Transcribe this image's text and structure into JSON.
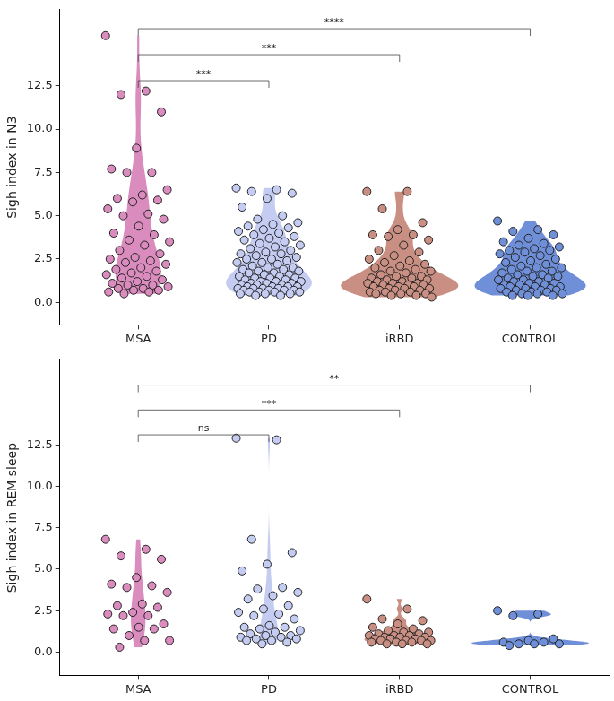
{
  "chart_data": [
    {
      "type": "violin",
      "y_label": "Sigh index in N3",
      "categories": [
        "MSA",
        "PD",
        "iRBD",
        "CONTROL"
      ],
      "colors": [
        "#d98cbd",
        "#c4ccf2",
        "#c98f82",
        "#6f8fd8"
      ],
      "values": [
        [
          15.4,
          12.2,
          12.0,
          11.0,
          8.9,
          7.7,
          7.5,
          7.5,
          6.5,
          6.2,
          6.0,
          5.9,
          5.8,
          5.4,
          5.1,
          5.0,
          4.8,
          4.4,
          4.0,
          3.9,
          3.6,
          3.5,
          3.3,
          3.0,
          2.8,
          2.6,
          2.5,
          2.4,
          2.3,
          2.2,
          2.0,
          1.9,
          1.8,
          1.7,
          1.6,
          1.5,
          1.4,
          1.3,
          1.2,
          1.1,
          1.0,
          1.0,
          0.9,
          0.8,
          0.8,
          0.7,
          0.7,
          0.6,
          0.6,
          0.5
        ],
        [
          6.6,
          6.5,
          6.4,
          6.3,
          6.0,
          5.5,
          5.0,
          4.8,
          4.6,
          4.5,
          4.4,
          4.3,
          4.2,
          4.1,
          4.0,
          3.9,
          3.8,
          3.7,
          3.6,
          3.5,
          3.4,
          3.3,
          3.2,
          3.1,
          3.0,
          2.9,
          2.8,
          2.8,
          2.7,
          2.6,
          2.5,
          2.5,
          2.4,
          2.3,
          2.3,
          2.2,
          2.1,
          2.0,
          2.0,
          1.9,
          1.9,
          1.8,
          1.8,
          1.7,
          1.7,
          1.6,
          1.6,
          1.5,
          1.5,
          1.4,
          1.4,
          1.4,
          1.3,
          1.3,
          1.2,
          1.2,
          1.2,
          1.1,
          1.1,
          1.1,
          1.0,
          1.0,
          1.0,
          0.9,
          0.9,
          0.9,
          0.9,
          0.8,
          0.8,
          0.8,
          0.8,
          0.7,
          0.7,
          0.7,
          0.7,
          0.6,
          0.6,
          0.6,
          0.6,
          0.5,
          0.5,
          0.5,
          0.4,
          0.4
        ],
        [
          6.4,
          6.4,
          5.4,
          4.6,
          4.2,
          3.9,
          3.9,
          3.8,
          3.6,
          3.3,
          3.0,
          2.9,
          2.7,
          2.5,
          2.4,
          2.3,
          2.2,
          2.1,
          2.0,
          1.9,
          1.8,
          1.8,
          1.7,
          1.6,
          1.5,
          1.5,
          1.4,
          1.4,
          1.3,
          1.3,
          1.2,
          1.2,
          1.1,
          1.1,
          1.1,
          1.0,
          1.0,
          1.0,
          0.9,
          0.9,
          0.9,
          0.8,
          0.8,
          0.8,
          0.7,
          0.7,
          0.7,
          0.6,
          0.6,
          0.6,
          0.5,
          0.5,
          0.5,
          0.4,
          0.4,
          0.3
        ],
        [
          4.7,
          4.2,
          4.1,
          3.9,
          3.7,
          3.5,
          3.4,
          3.3,
          3.2,
          3.1,
          3.0,
          3.0,
          2.9,
          2.8,
          2.7,
          2.6,
          2.5,
          2.4,
          2.3,
          2.2,
          2.1,
          2.0,
          2.0,
          1.9,
          1.8,
          1.8,
          1.7,
          1.6,
          1.6,
          1.5,
          1.5,
          1.4,
          1.4,
          1.3,
          1.3,
          1.2,
          1.2,
          1.1,
          1.1,
          1.0,
          1.0,
          1.0,
          0.9,
          0.9,
          0.9,
          0.8,
          0.8,
          0.8,
          0.7,
          0.7,
          0.7,
          0.6,
          0.6,
          0.6,
          0.5,
          0.5,
          0.5,
          0.4,
          0.4,
          0.4
        ]
      ],
      "annotations": [
        {
          "from": "MSA",
          "to": "CONTROL",
          "y": 15.8,
          "label": "****"
        },
        {
          "from": "MSA",
          "to": "iRBD",
          "y": 14.3,
          "label": "***"
        },
        {
          "from": "MSA",
          "to": "PD",
          "y": 12.8,
          "label": "***"
        }
      ],
      "ylim": [
        -1.3,
        16.9
      ],
      "yticks": [
        {
          "value": 0,
          "label": "0.0"
        },
        2.5,
        {
          "value": 5,
          "label": "5.0"
        },
        7.5,
        {
          "value": 10,
          "label": "10.0"
        },
        12.5
      ],
      "grid": false
    },
    {
      "type": "violin",
      "y_label": "Sigh index in REM sleep",
      "categories": [
        "MSA",
        "PD",
        "iRBD",
        "CONTROL"
      ],
      "colors": [
        "#d98cbd",
        "#c4ccf2",
        "#c98f82",
        "#6f8fd8"
      ],
      "values": [
        [
          6.8,
          6.2,
          5.8,
          5.6,
          4.5,
          4.1,
          4.0,
          3.9,
          3.6,
          2.9,
          2.8,
          2.7,
          2.4,
          2.3,
          2.2,
          2.2,
          1.7,
          1.5,
          1.4,
          1.4,
          1.0,
          0.7,
          0.7,
          0.3
        ],
        [
          12.9,
          12.8,
          6.8,
          6.0,
          5.3,
          4.9,
          3.9,
          3.8,
          3.6,
          3.4,
          3.2,
          2.8,
          2.6,
          2.4,
          2.3,
          2.2,
          2.0,
          1.6,
          1.5,
          1.5,
          1.4,
          1.3,
          1.2,
          1.1,
          1.0,
          1.0,
          0.9,
          0.9,
          0.8,
          0.8,
          0.7,
          0.7,
          0.6,
          0.5
        ],
        [
          3.2,
          2.6,
          2.0,
          1.9,
          1.7,
          1.5,
          1.4,
          1.3,
          1.2,
          1.2,
          1.1,
          1.1,
          1.0,
          1.0,
          1.0,
          0.9,
          0.9,
          0.9,
          0.8,
          0.8,
          0.8,
          0.7,
          0.7,
          0.7,
          0.7,
          0.6,
          0.6,
          0.6,
          0.5,
          0.5,
          0.5
        ],
        [
          2.5,
          2.3,
          2.2,
          0.8,
          0.7,
          0.6,
          0.6,
          0.5,
          0.5,
          0.5,
          0.4
        ]
      ],
      "annotations": [
        {
          "from": "MSA",
          "to": "CONTROL",
          "y": 16.1,
          "label": "**"
        },
        {
          "from": "MSA",
          "to": "iRBD",
          "y": 14.6,
          "label": "***"
        },
        {
          "from": "MSA",
          "to": "PD",
          "y": 13.1,
          "label": "ns"
        }
      ],
      "ylim": [
        -1.4,
        17.6
      ],
      "yticks": [
        {
          "value": 0,
          "label": "0.0"
        },
        2.5,
        {
          "value": 5,
          "label": "5.0"
        },
        7.5,
        {
          "value": 10,
          "label": "10.0"
        },
        12.5
      ],
      "grid": false
    }
  ]
}
